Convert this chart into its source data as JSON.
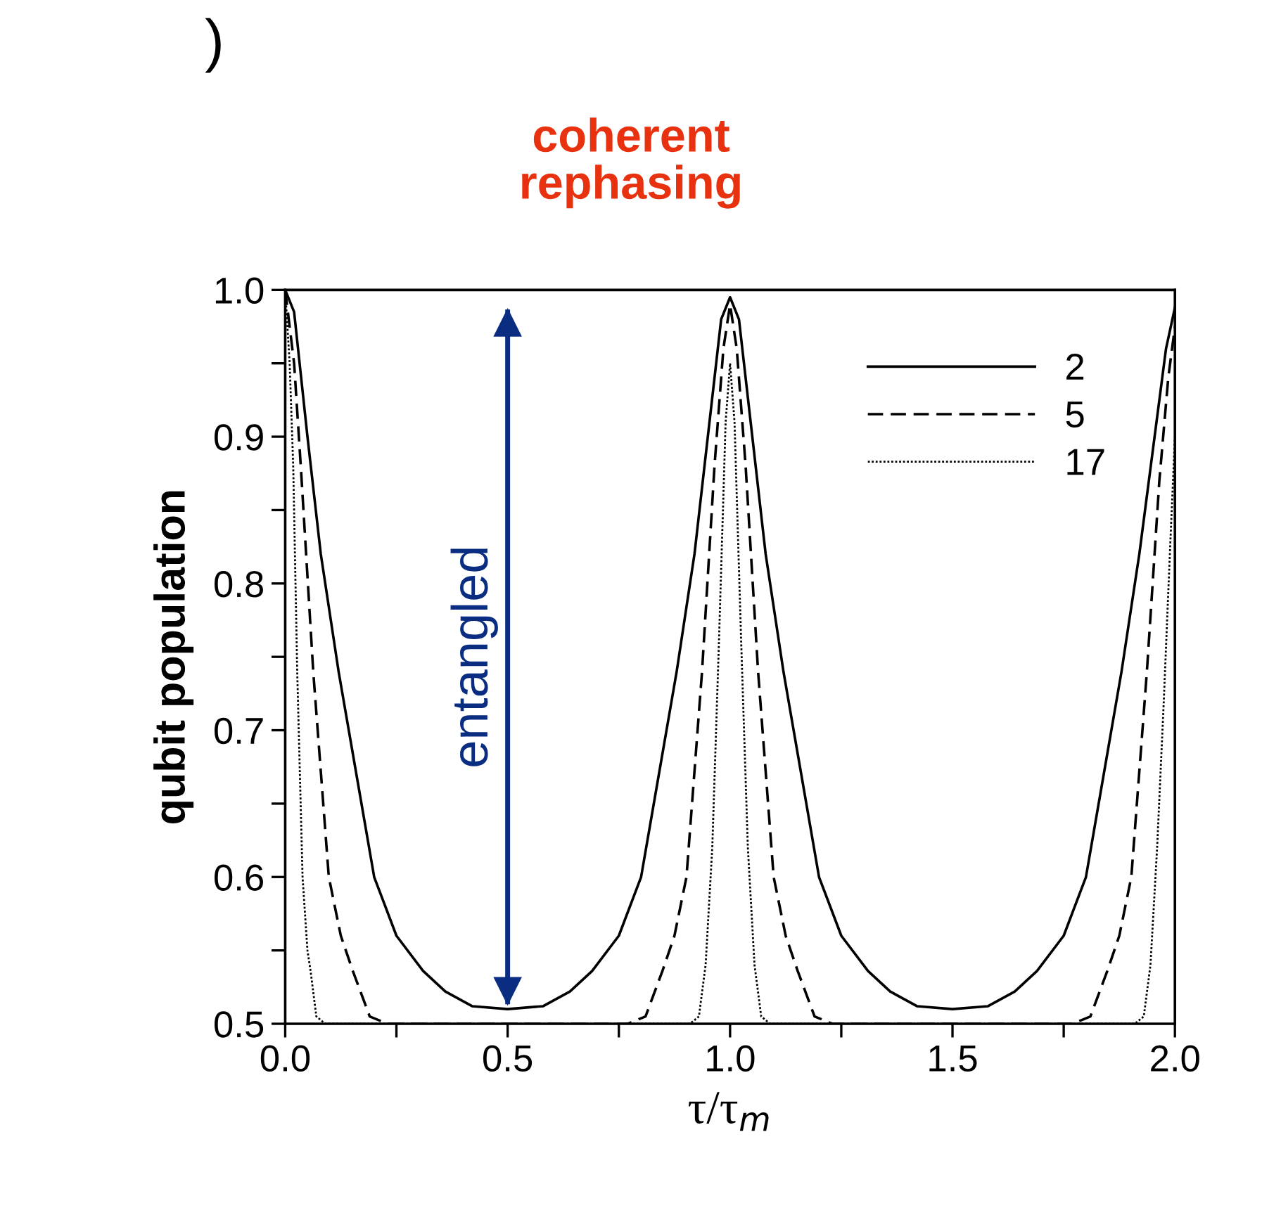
{
  "chart_data": {
    "type": "line",
    "title": "coherent\nrephasing",
    "xlabel": "τ/τ$_{m}$",
    "ylabel": "qubit population",
    "annotations": [
      ")"
    ],
    "ref_lines": [
      {
        "axis": "x",
        "value": 0.5,
        "label": "entangled",
        "color": "#0a2d82"
      }
    ],
    "xlim": [
      0.0,
      2.0
    ],
    "ylim": [
      0.5,
      1.0
    ],
    "xticks": [
      {
        "value": 0.0,
        "label": "0.0"
      },
      {
        "value": 0.25,
        "label": null
      },
      {
        "value": 0.5,
        "label": "0.5"
      },
      {
        "value": 0.75,
        "label": null
      },
      {
        "value": 1.0,
        "label": "1.0"
      },
      {
        "value": 1.25,
        "label": null
      },
      {
        "value": 1.5,
        "label": "1.5"
      },
      {
        "value": 1.75,
        "label": null
      },
      {
        "value": 2.0,
        "label": "2.0"
      }
    ],
    "yticks": [
      0.5,
      {
        "value": 0.55,
        "label": null
      },
      0.6,
      {
        "value": 0.65,
        "label": null
      },
      0.7,
      {
        "value": 0.75,
        "label": null
      },
      0.8,
      {
        "value": 0.85,
        "label": null
      },
      0.9,
      {
        "value": 0.95,
        "label": null
      },
      {
        "value": 1.0,
        "label": "1.0"
      }
    ],
    "grid": false,
    "legend": "top right",
    "marker": "none",
    "series": [
      {
        "name": "2",
        "color": "#000000",
        "line_style": "solid",
        "x": [
          0,
          0.02,
          0.05,
          0.08,
          0.12,
          0.16,
          0.2,
          0.25,
          0.31,
          0.36,
          0.42,
          0.5,
          0.58,
          0.64,
          0.69,
          0.75,
          0.8,
          0.84,
          0.88,
          0.92,
          0.95,
          0.98,
          1.0,
          1.02,
          1.05,
          1.08,
          1.12,
          1.16,
          1.2,
          1.25,
          1.31,
          1.36,
          1.42,
          1.5,
          1.58,
          1.64,
          1.69,
          1.75,
          1.8,
          1.84,
          1.88,
          1.92,
          1.95,
          1.98,
          2.0
        ],
        "values": [
          1.0,
          0.985,
          0.9,
          0.82,
          0.74,
          0.67,
          0.6,
          0.56,
          0.536,
          0.522,
          0.512,
          0.51,
          0.512,
          0.522,
          0.536,
          0.56,
          0.6,
          0.67,
          0.74,
          0.82,
          0.9,
          0.98,
          0.995,
          0.98,
          0.9,
          0.82,
          0.74,
          0.67,
          0.6,
          0.56,
          0.536,
          0.522,
          0.512,
          0.51,
          0.512,
          0.522,
          0.536,
          0.56,
          0.6,
          0.67,
          0.74,
          0.82,
          0.89,
          0.96,
          0.988
        ]
      },
      {
        "name": "5",
        "color": "#000000",
        "line_style": "dashed",
        "x": [
          0,
          0.02,
          0.035,
          0.063,
          0.098,
          0.125,
          0.152,
          0.19,
          0.23,
          0.77,
          0.81,
          0.848,
          0.875,
          0.902,
          0.937,
          0.965,
          0.985,
          1.0,
          1.015,
          1.035,
          1.063,
          1.098,
          1.125,
          1.152,
          1.19,
          1.23,
          1.77,
          1.81,
          1.848,
          1.875,
          1.902,
          1.937,
          1.965,
          1.985,
          2.0
        ],
        "values": [
          1.0,
          0.95,
          0.88,
          0.74,
          0.6,
          0.56,
          0.536,
          0.505,
          0.5,
          0.5,
          0.505,
          0.536,
          0.56,
          0.6,
          0.74,
          0.88,
          0.96,
          0.99,
          0.96,
          0.88,
          0.74,
          0.6,
          0.56,
          0.536,
          0.505,
          0.5,
          0.5,
          0.505,
          0.536,
          0.56,
          0.6,
          0.74,
          0.87,
          0.94,
          0.975
        ]
      },
      {
        "name": "17",
        "color": "#000000",
        "line_style": "dotted",
        "x": [
          0,
          0.01,
          0.018,
          0.027,
          0.039,
          0.05,
          0.057,
          0.07,
          0.09,
          0.91,
          0.93,
          0.945,
          0.96,
          0.975,
          0.99,
          1.0,
          1.01,
          1.025,
          1.04,
          1.055,
          1.07,
          1.09,
          1.91,
          1.93,
          1.945,
          1.96,
          1.975,
          1.99,
          2.0
        ],
        "values": [
          1.0,
          0.95,
          0.88,
          0.74,
          0.6,
          0.55,
          0.536,
          0.505,
          0.5,
          0.5,
          0.505,
          0.54,
          0.62,
          0.76,
          0.91,
          0.95,
          0.91,
          0.76,
          0.62,
          0.54,
          0.505,
          0.5,
          0.5,
          0.505,
          0.54,
          0.62,
          0.72,
          0.83,
          0.9
        ]
      }
    ]
  }
}
